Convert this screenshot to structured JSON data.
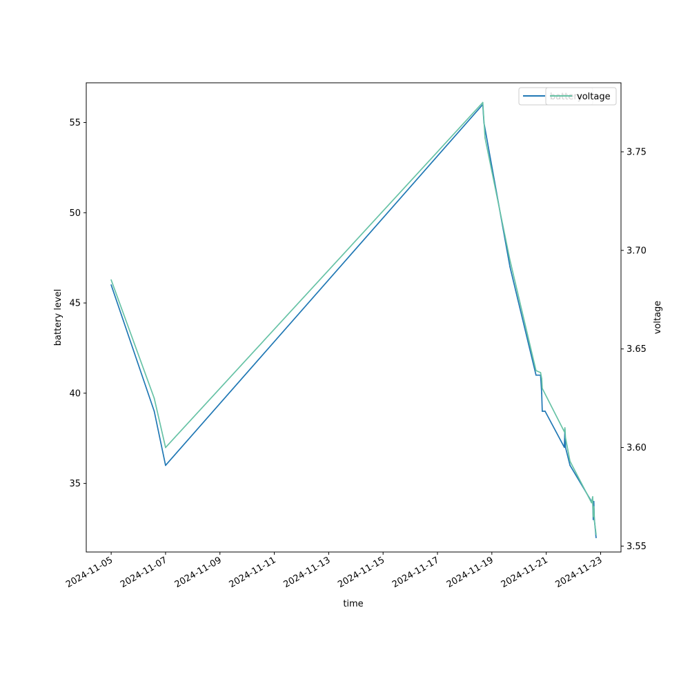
{
  "chart_data": {
    "type": "line",
    "title": "",
    "xlabel": "time",
    "ylabel_left": "battery level",
    "ylabel_right": "voltage",
    "x_tick_labels": [
      "2024-11-05",
      "2024-11-07",
      "2024-11-09",
      "2024-11-11",
      "2024-11-13",
      "2024-11-15",
      "2024-11-17",
      "2024-11-19",
      "2024-11-21",
      "2024-11-23"
    ],
    "y_left_ticks": [
      35,
      40,
      45,
      50,
      55
    ],
    "y_left_ylim": [
      31.2,
      57.2
    ],
    "y_right_ticks": [
      3.55,
      3.6,
      3.65,
      3.7,
      3.75
    ],
    "y_right_ylim": [
      3.547,
      3.785
    ],
    "xlim": [
      "2024-11-04T02:00",
      "2024-11-23T18:00"
    ],
    "grid": false,
    "legends": [
      {
        "placement": "top-right",
        "entries": [
          "battery"
        ]
      },
      {
        "placement": "top-right",
        "entries": [
          "voltage"
        ]
      }
    ],
    "series": [
      {
        "name": "battery",
        "axis": "left",
        "color": "#1f77b4",
        "points": [
          [
            "2024-11-05T00:00",
            46
          ],
          [
            "2024-11-06T14:00",
            39
          ],
          [
            "2024-11-07T00:00",
            36
          ],
          [
            "2024-11-18T16:00",
            56
          ],
          [
            "2024-11-18T17:00",
            55
          ],
          [
            "2024-11-19T16:00",
            47
          ],
          [
            "2024-11-20T15:00",
            41
          ],
          [
            "2024-11-20T19:00",
            41
          ],
          [
            "2024-11-20T20:00",
            40
          ],
          [
            "2024-11-20T20:30",
            39
          ],
          [
            "2024-11-20T23:00",
            39
          ],
          [
            "2024-11-21T16:00",
            37
          ],
          [
            "2024-11-21T16:30",
            38
          ],
          [
            "2024-11-21T17:00",
            37
          ],
          [
            "2024-11-21T21:00",
            36
          ],
          [
            "2024-11-22T16:00",
            34
          ],
          [
            "2024-11-22T17:00",
            34
          ],
          [
            "2024-11-22T17:30",
            33
          ],
          [
            "2024-11-22T18:00",
            34
          ],
          [
            "2024-11-22T18:30",
            33
          ],
          [
            "2024-11-22T20:00",
            32
          ]
        ]
      },
      {
        "name": "voltage",
        "axis": "right",
        "color": "#66c2a5",
        "points": [
          [
            "2024-11-05T00:00",
            3.685
          ],
          [
            "2024-11-06T14:00",
            3.625
          ],
          [
            "2024-11-07T00:00",
            3.6
          ],
          [
            "2024-11-18T16:00",
            3.775
          ],
          [
            "2024-11-18T18:00",
            3.757
          ],
          [
            "2024-11-19T16:00",
            3.695
          ],
          [
            "2024-11-20T15:00",
            3.639
          ],
          [
            "2024-11-20T19:00",
            3.638
          ],
          [
            "2024-11-20T20:00",
            3.635
          ],
          [
            "2024-11-20T20:30",
            3.63
          ],
          [
            "2024-11-21T16:00",
            3.608
          ],
          [
            "2024-11-21T16:30",
            3.61
          ],
          [
            "2024-11-21T17:00",
            3.605
          ],
          [
            "2024-11-21T21:00",
            3.593
          ],
          [
            "2024-11-22T16:00",
            3.572
          ],
          [
            "2024-11-22T17:00",
            3.575
          ],
          [
            "2024-11-22T17:30",
            3.565
          ],
          [
            "2024-11-22T18:00",
            3.57
          ],
          [
            "2024-11-22T18:30",
            3.563
          ],
          [
            "2024-11-22T20:00",
            3.556
          ]
        ]
      }
    ]
  }
}
